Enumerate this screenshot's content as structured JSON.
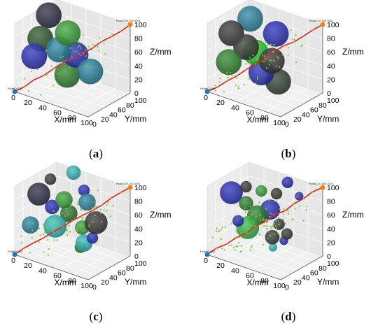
{
  "chart_data": [
    {
      "type": "scatter",
      "panel_label": "a",
      "xlabel": "X/mm",
      "ylabel": "Y/mm",
      "zlabel": "Z/mm",
      "xlim": [
        0,
        100
      ],
      "ylim": [
        0,
        100
      ],
      "zlim": [
        0,
        100
      ],
      "x_ticks": [
        "0",
        "20",
        "40",
        "60",
        "80",
        "100"
      ],
      "y_ticks": [
        "0",
        "20",
        "40",
        "60",
        "80",
        "100"
      ],
      "z_ticks": [
        "0",
        "20",
        "40",
        "60",
        "80",
        "100"
      ],
      "grid": true,
      "start_point": {
        "label": "Point(0,0,0)",
        "x": 0,
        "y": 0,
        "z": 0,
        "color": "#1f77b4"
      },
      "goal_point": {
        "label": "Point(100,100,100)",
        "x": 100,
        "y": 100,
        "z": 100,
        "color": "#ff7f0e"
      },
      "obstacles": [
        {
          "x": 12,
          "y": 60,
          "z": 95,
          "r": 9,
          "color": "#2b2d44"
        },
        {
          "x": 12,
          "y": 40,
          "z": 68,
          "r": 9,
          "color": "#2e5a2e"
        },
        {
          "x": 55,
          "y": 30,
          "z": 95,
          "r": 9,
          "color": "#3aaa3a"
        },
        {
          "x": 40,
          "y": 35,
          "z": 64,
          "r": 9,
          "color": "#2a8aa8"
        },
        {
          "x": 60,
          "y": 40,
          "z": 62,
          "r": 9,
          "color": "#2a30c4"
        },
        {
          "x": 15,
          "y": 20,
          "z": 50,
          "r": 9,
          "color": "#2a30c4"
        },
        {
          "x": 80,
          "y": 40,
          "z": 45,
          "r": 9,
          "color": "#2a8aa8"
        },
        {
          "x": 40,
          "y": 55,
          "z": 20,
          "r": 9,
          "color": "#2e8a2e"
        }
      ]
    },
    {
      "type": "scatter",
      "panel_label": "b",
      "xlabel": "X/mm",
      "ylabel": "Y/mm",
      "zlabel": "Z/mm",
      "xlim": [
        0,
        100
      ],
      "ylim": [
        0,
        100
      ],
      "zlim": [
        0,
        100
      ],
      "x_ticks": [
        "0",
        "20",
        "40",
        "60",
        "80",
        "100"
      ],
      "y_ticks": [
        "0",
        "20",
        "40",
        "60",
        "80",
        "100"
      ],
      "z_ticks": [
        "0",
        "20",
        "40",
        "60",
        "80",
        "100"
      ],
      "grid": true,
      "start_point": {
        "label": "Point(0,0,0)",
        "x": 0,
        "y": 0,
        "z": 0,
        "color": "#1f77b4"
      },
      "goal_point": {
        "label": "Point(100,100,100)",
        "x": 100,
        "y": 100,
        "z": 100,
        "color": "#ff7f0e"
      },
      "obstacles": [
        {
          "x": 30,
          "y": 50,
          "z": 100,
          "r": 9,
          "color": "#2a8aa8"
        },
        {
          "x": 62,
          "y": 55,
          "z": 88,
          "r": 9,
          "color": "#2a30c4"
        },
        {
          "x": 10,
          "y": 40,
          "z": 75,
          "r": 9,
          "color": "#3a3a3a"
        },
        {
          "x": 30,
          "y": 40,
          "z": 62,
          "r": 9,
          "color": "#3a3a3a"
        },
        {
          "x": 42,
          "y": 42,
          "z": 58,
          "r": 9,
          "color": "#2bd62b"
        },
        {
          "x": 65,
          "y": 40,
          "z": 55,
          "r": 9,
          "color": "#3a3a3a"
        },
        {
          "x": 15,
          "y": 25,
          "z": 40,
          "r": 9,
          "color": "#2e8a2e"
        },
        {
          "x": 48,
          "y": 45,
          "z": 30,
          "r": 9,
          "color": "#2a30c4"
        },
        {
          "x": 68,
          "y": 50,
          "z": 22,
          "r": 9,
          "color": "#334433"
        }
      ]
    },
    {
      "type": "scatter",
      "panel_label": "c",
      "xlabel": "X/mm",
      "ylabel": "Y/mm",
      "zlabel": "Z/mm",
      "xlim": [
        0,
        100
      ],
      "ylim": [
        0,
        100
      ],
      "zlim": [
        0,
        100
      ],
      "x_ticks": [
        "0",
        "20",
        "40",
        "60",
        "80",
        "100"
      ],
      "y_ticks": [
        "0",
        "20",
        "40",
        "60",
        "80",
        "100"
      ],
      "z_ticks": [
        "0",
        "20",
        "40",
        "60",
        "80",
        "100"
      ],
      "grid": true,
      "start_point": {
        "label": "Point(0,0,0)",
        "x": 0,
        "y": 0,
        "z": 0,
        "color": "#1f77b4"
      },
      "goal_point": {
        "label": "Point(100,100,100)",
        "x": 100,
        "y": 100,
        "z": 100,
        "color": "#ff7f0e"
      },
      "obstacles": [
        {
          "x": 40,
          "y": 70,
          "z": 110,
          "r": 5,
          "color": "#35c4c4"
        },
        {
          "x": 20,
          "y": 50,
          "z": 100,
          "r": 4,
          "color": "#3a3a3a"
        },
        {
          "x": 60,
          "y": 60,
          "z": 95,
          "r": 4,
          "color": "#2a30c4"
        },
        {
          "x": 10,
          "y": 40,
          "z": 78,
          "r": 8,
          "color": "#2b2d44"
        },
        {
          "x": 50,
          "y": 30,
          "z": 88,
          "r": 6,
          "color": "#3aaa3a"
        },
        {
          "x": 70,
          "y": 50,
          "z": 85,
          "r": 6,
          "color": "#2a8aa8"
        },
        {
          "x": 28,
          "y": 40,
          "z": 66,
          "r": 5,
          "color": "#2a30c4"
        },
        {
          "x": 48,
          "y": 45,
          "z": 62,
          "r": 6,
          "color": "#2e7a2e"
        },
        {
          "x": 85,
          "y": 45,
          "z": 62,
          "r": 8,
          "color": "#3a3a3a"
        },
        {
          "x": 66,
          "y": 45,
          "z": 48,
          "r": 5,
          "color": "#3aaa3a"
        },
        {
          "x": 35,
          "y": 35,
          "z": 42,
          "r": 8,
          "color": "#35c4c4"
        },
        {
          "x": 10,
          "y": 20,
          "z": 40,
          "r": 6,
          "color": "#2a8aa8"
        },
        {
          "x": 80,
          "y": 45,
          "z": 38,
          "r": 4,
          "color": "#2a30c4"
        },
        {
          "x": 60,
          "y": 60,
          "z": 18,
          "r": 6,
          "color": "#35c4c4"
        },
        {
          "x": 55,
          "y": 60,
          "z": 10,
          "r": 4,
          "color": "#2e8a2e"
        }
      ]
    },
    {
      "type": "scatter",
      "panel_label": "d",
      "xlabel": "X/mm",
      "ylabel": "Y/mm",
      "zlabel": "Z/mm",
      "xlim": [
        0,
        100
      ],
      "ylim": [
        0,
        100
      ],
      "zlim": [
        0,
        100
      ],
      "x_ticks": [
        "0",
        "20",
        "40",
        "60",
        "80",
        "100"
      ],
      "y_ticks": [
        "0",
        "20",
        "40",
        "60",
        "80",
        "100"
      ],
      "z_ticks": [
        "0",
        "20",
        "40",
        "60",
        "80",
        "100"
      ],
      "grid": true,
      "start_point": {
        "label": "Point(0,0,0)",
        "x": 0,
        "y": 0,
        "z": 0,
        "color": "#1f77b4"
      },
      "goal_point": {
        "label": "Point(100,100,100)",
        "x": 100,
        "y": 100,
        "z": 100,
        "color": "#ff7f0e"
      },
      "obstacles": [
        {
          "x": 75,
          "y": 60,
          "z": 112,
          "r": 4,
          "color": "#2a30c4"
        },
        {
          "x": 30,
          "y": 40,
          "z": 96,
          "r": 4,
          "color": "#3a3a3a"
        },
        {
          "x": 45,
          "y": 50,
          "z": 92,
          "r": 4,
          "color": "#3aaa3a"
        },
        {
          "x": 60,
          "y": 60,
          "z": 90,
          "r": 4,
          "color": "#3a3a3a"
        },
        {
          "x": 88,
          "y": 65,
          "z": 95,
          "r": 3,
          "color": "#2a30c4"
        },
        {
          "x": 10,
          "y": 40,
          "z": 80,
          "r": 8,
          "color": "#2a30c4"
        },
        {
          "x": 30,
          "y": 40,
          "z": 72,
          "r": 5,
          "color": "#2e8a2e"
        },
        {
          "x": 60,
          "y": 45,
          "z": 72,
          "r": 7,
          "color": "#2a30c4"
        },
        {
          "x": 45,
          "y": 40,
          "z": 60,
          "r": 7,
          "color": "#2e8a2e"
        },
        {
          "x": 72,
          "y": 45,
          "z": 55,
          "r": 4,
          "color": "#3a3a3a"
        },
        {
          "x": 25,
          "y": 30,
          "z": 48,
          "r": 4,
          "color": "#2a30c4"
        },
        {
          "x": 35,
          "y": 35,
          "z": 40,
          "r": 8,
          "color": "#35c44a"
        },
        {
          "x": 80,
          "y": 50,
          "z": 42,
          "r": 4,
          "color": "#3a3a3a"
        },
        {
          "x": 60,
          "y": 50,
          "z": 30,
          "r": 5,
          "color": "#3a3a3a"
        },
        {
          "x": 70,
          "y": 60,
          "z": 25,
          "r": 3,
          "color": "#2a30c4"
        },
        {
          "x": 55,
          "y": 60,
          "z": 10,
          "r": 3,
          "color": "#35c4c4"
        }
      ]
    }
  ]
}
